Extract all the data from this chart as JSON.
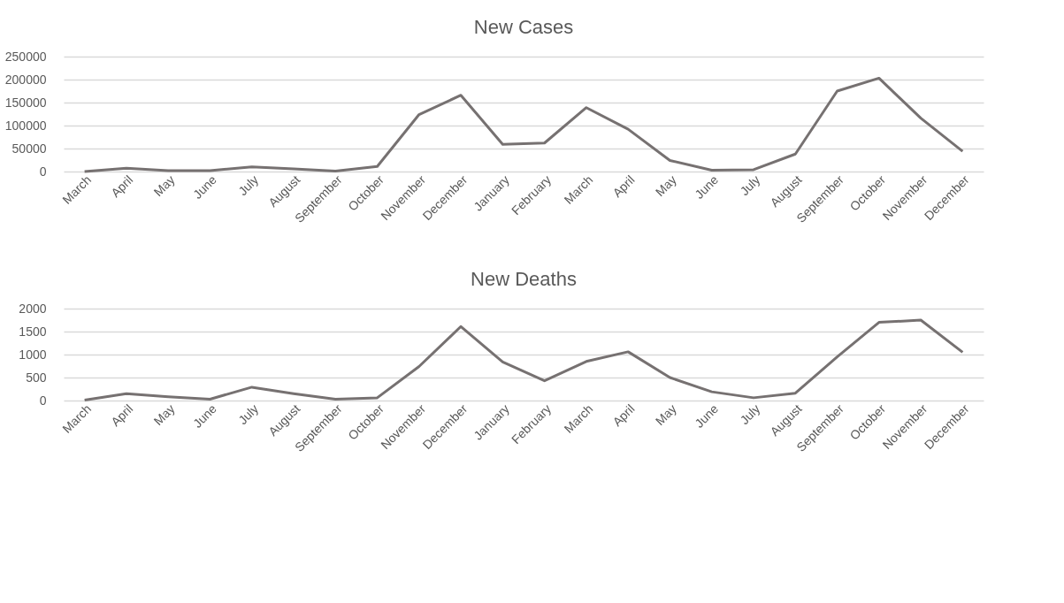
{
  "chart_data": [
    {
      "type": "line",
      "title": "New Cases",
      "categories": [
        "March",
        "April",
        "May",
        "June",
        "July",
        "August",
        "September",
        "October",
        "November",
        "December",
        "January",
        "February",
        "March",
        "April",
        "May",
        "June",
        "July",
        "August",
        "September",
        "October",
        "November",
        "December"
      ],
      "series": [
        {
          "color": "#767171",
          "values": [
            0,
            7000,
            2000,
            2000,
            10000,
            6000,
            1000,
            11000,
            124000,
            166000,
            59000,
            62000,
            139000,
            92000,
            24000,
            3000,
            4000,
            38000,
            175000,
            203000,
            116000,
            44000
          ]
        }
      ],
      "ylim": [
        0,
        250000
      ],
      "yticks": [
        0,
        50000,
        100000,
        150000,
        200000,
        250000
      ],
      "grid": "y",
      "marker": "none",
      "line_style": "solid"
    },
    {
      "type": "line",
      "title": "New Deaths",
      "categories": [
        "March",
        "April",
        "May",
        "June",
        "July",
        "August",
        "September",
        "October",
        "November",
        "December",
        "January",
        "February",
        "March",
        "April",
        "May",
        "June",
        "July",
        "August",
        "September",
        "October",
        "November",
        "December"
      ],
      "series": [
        {
          "color": "#767171",
          "values": [
            10,
            150,
            80,
            30,
            290,
            150,
            30,
            60,
            740,
            1610,
            840,
            430,
            850,
            1060,
            500,
            190,
            60,
            160,
            950,
            1700,
            1750,
            1050
          ]
        }
      ],
      "ylim": [
        0,
        2000
      ],
      "yticks": [
        0,
        500,
        1000,
        1500,
        2000
      ],
      "grid": "y",
      "marker": "none",
      "line_style": "solid"
    }
  ]
}
